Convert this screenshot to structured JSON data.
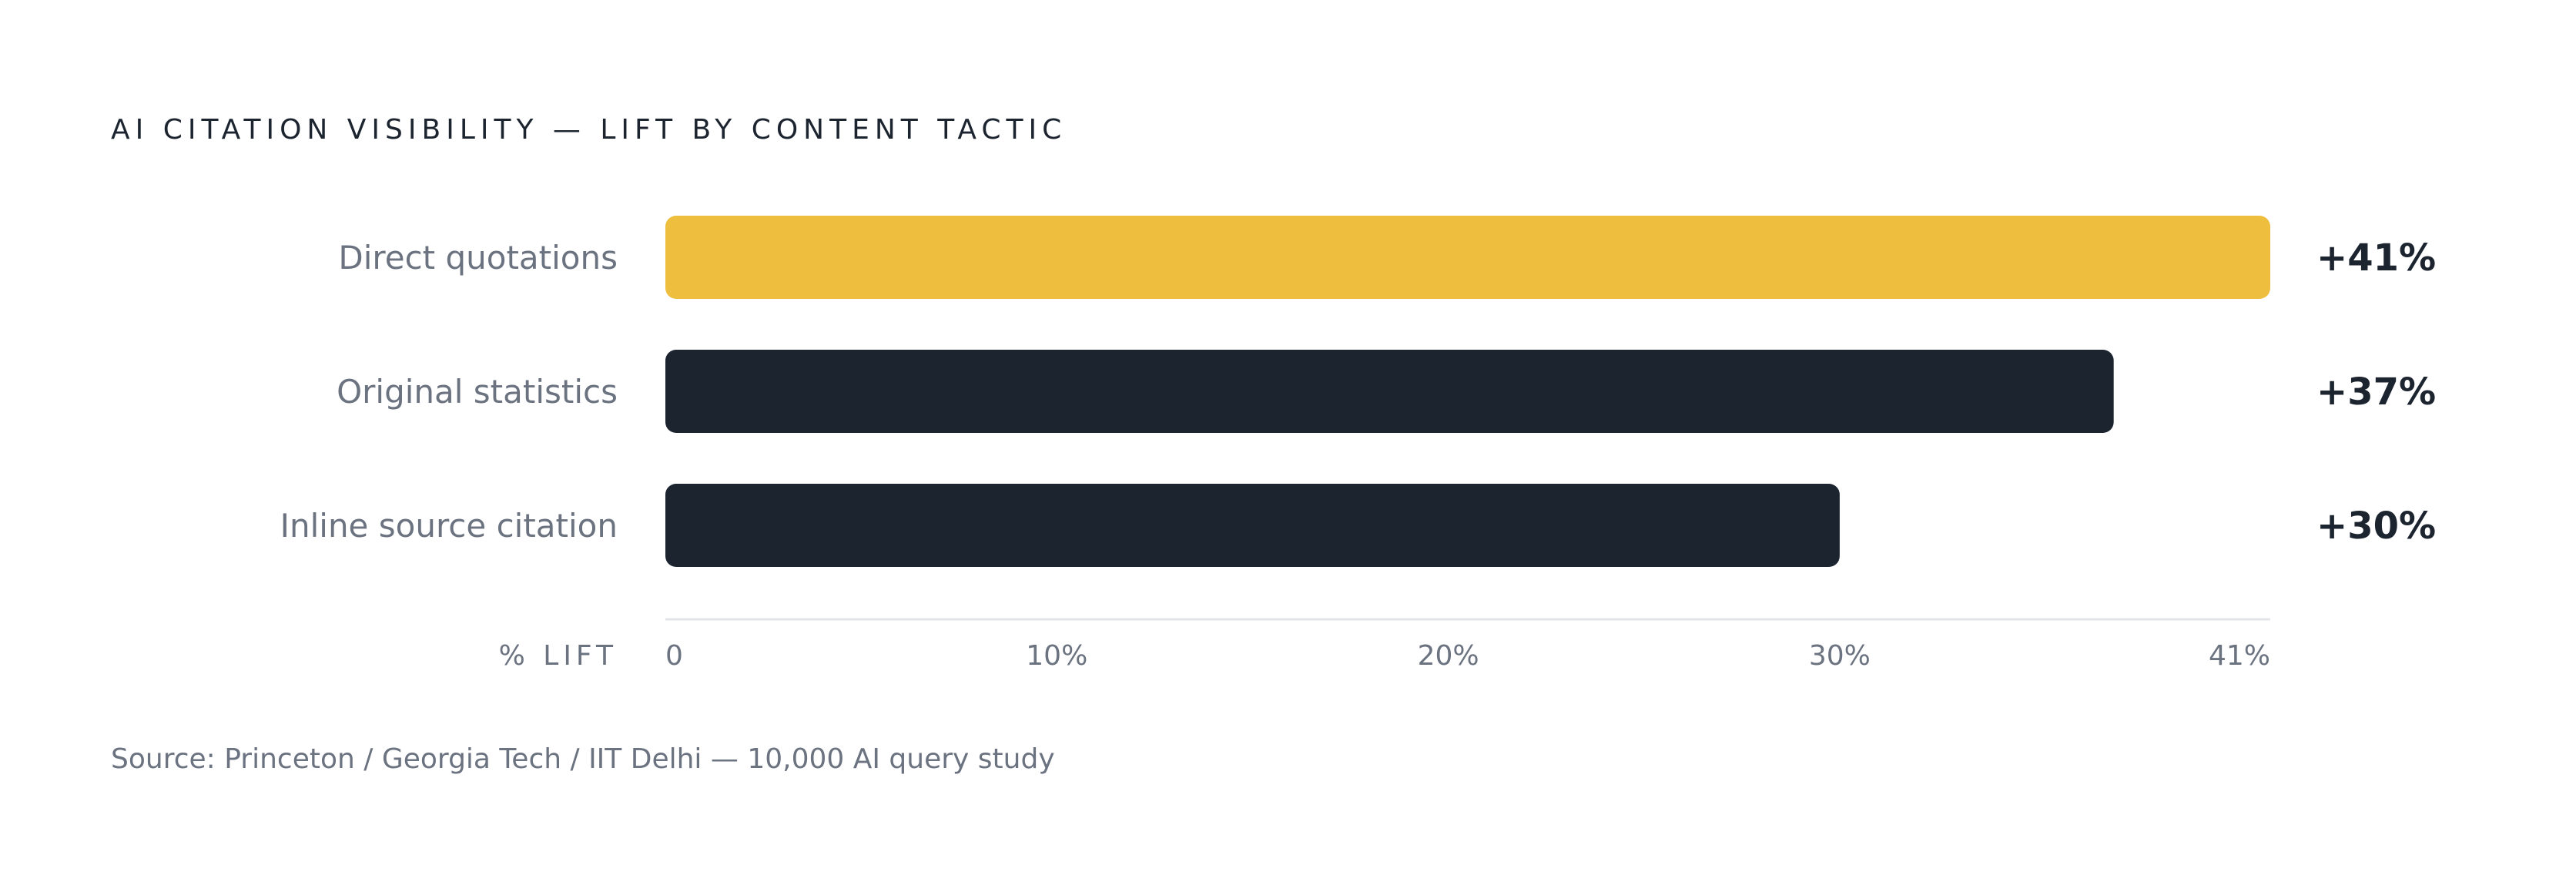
{
  "chart_data": {
    "type": "bar",
    "orientation": "horizontal",
    "title": "AI CITATION VISIBILITY — LIFT BY CONTENT TACTIC",
    "categories": [
      "Direct quotations",
      "Original statistics",
      "Inline source citation"
    ],
    "values": [
      41,
      37,
      30
    ],
    "value_labels": [
      "+41%",
      "+37%",
      "+30%"
    ],
    "highlight_index": 0,
    "xlabel": "% LIFT",
    "xlim": [
      0,
      41
    ],
    "ticks": [
      0,
      10,
      20,
      30,
      41
    ],
    "tick_labels": [
      "0",
      "10%",
      "20%",
      "30%",
      "41%"
    ],
    "grid": false,
    "source": "Source: Princeton / Georgia Tech / IIT Delhi — 10,000 AI query study",
    "colors": {
      "highlight": "#EEBF3F",
      "bar": "#1C2430",
      "axis": "#E2E4E8",
      "text_dark": "#1C2430",
      "text_muted": "#6B7280"
    }
  }
}
